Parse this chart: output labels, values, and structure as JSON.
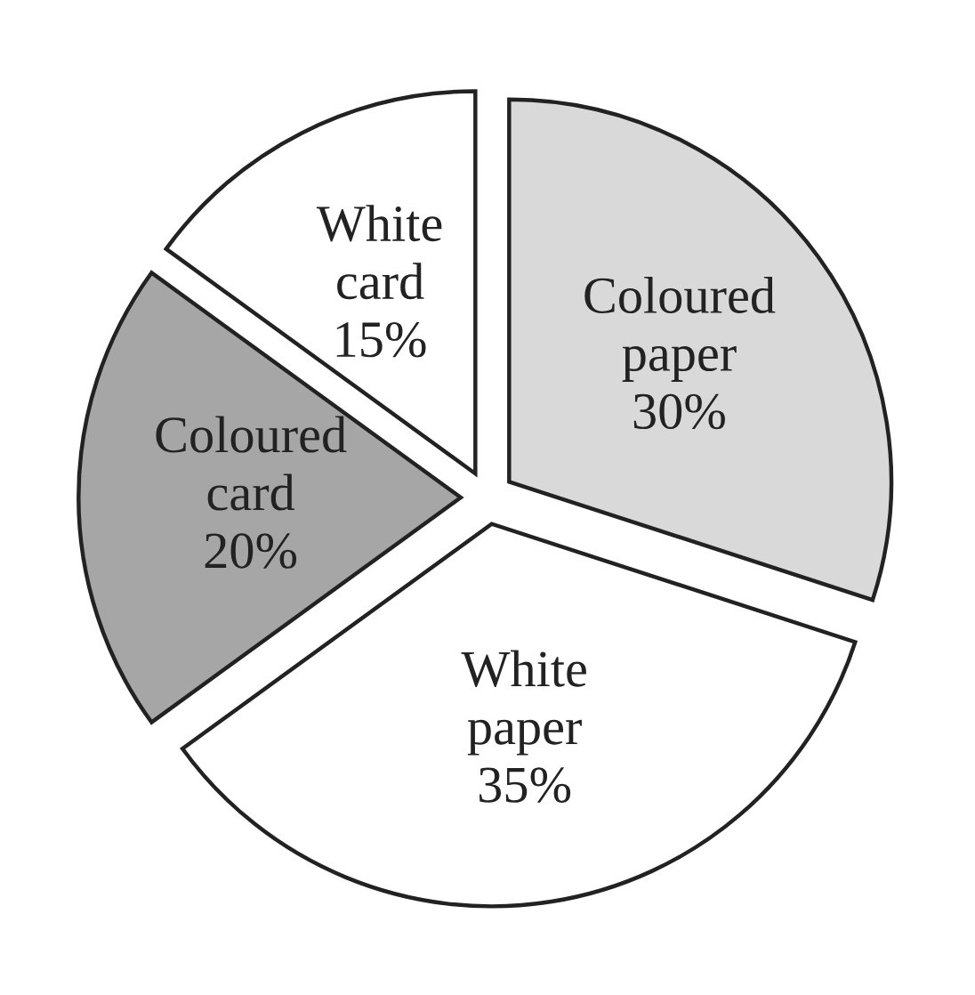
{
  "chart_data": {
    "type": "pie",
    "categories": [
      "Coloured paper",
      "White paper",
      "Coloured card",
      "White card"
    ],
    "values": [
      30,
      35,
      20,
      15
    ],
    "value_labels": [
      "30%",
      "35%",
      "20%",
      "15%"
    ],
    "colors": [
      "#d9d9d9",
      "#ffffff",
      "#a6a6a6",
      "#ffffff"
    ],
    "legend": false
  }
}
